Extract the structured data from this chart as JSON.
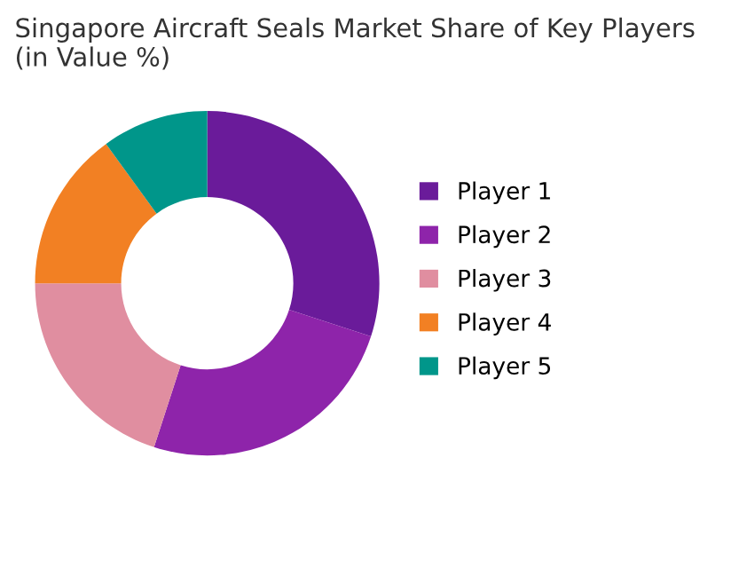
{
  "chart_data": {
    "type": "donut",
    "title": "Singapore Aircraft Seals Market Share of Key Players\n(in Value %)",
    "categories": [
      "Player 1",
      "Player 2",
      "Player 3",
      "Player 4",
      "Player 5"
    ],
    "values": [
      30,
      25,
      20,
      15,
      10
    ],
    "colors": [
      "#6a1b9a",
      "#8e24aa",
      "#e08ea0",
      "#f28023",
      "#00968a"
    ],
    "legend": "right"
  }
}
